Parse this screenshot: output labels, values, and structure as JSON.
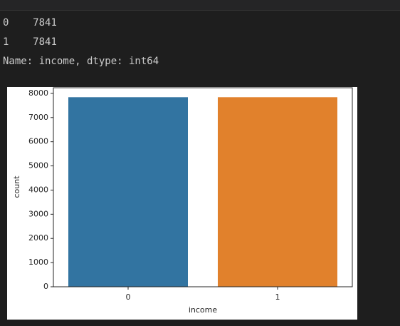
{
  "output": {
    "rows": [
      {
        "index": "0",
        "value": 7841
      },
      {
        "index": "1",
        "value": 7841
      }
    ],
    "summary": "Name: income, dtype: int64"
  },
  "chart_data": {
    "type": "bar",
    "categories": [
      "0",
      "1"
    ],
    "values": [
      7841,
      7841
    ],
    "colors": [
      "#3274a1",
      "#e1812c"
    ],
    "xlabel": "income",
    "ylabel": "count",
    "ylim": [
      0,
      8233
    ],
    "yticks": [
      0,
      1000,
      2000,
      3000,
      4000,
      5000,
      6000,
      7000,
      8000
    ],
    "grid": false
  }
}
